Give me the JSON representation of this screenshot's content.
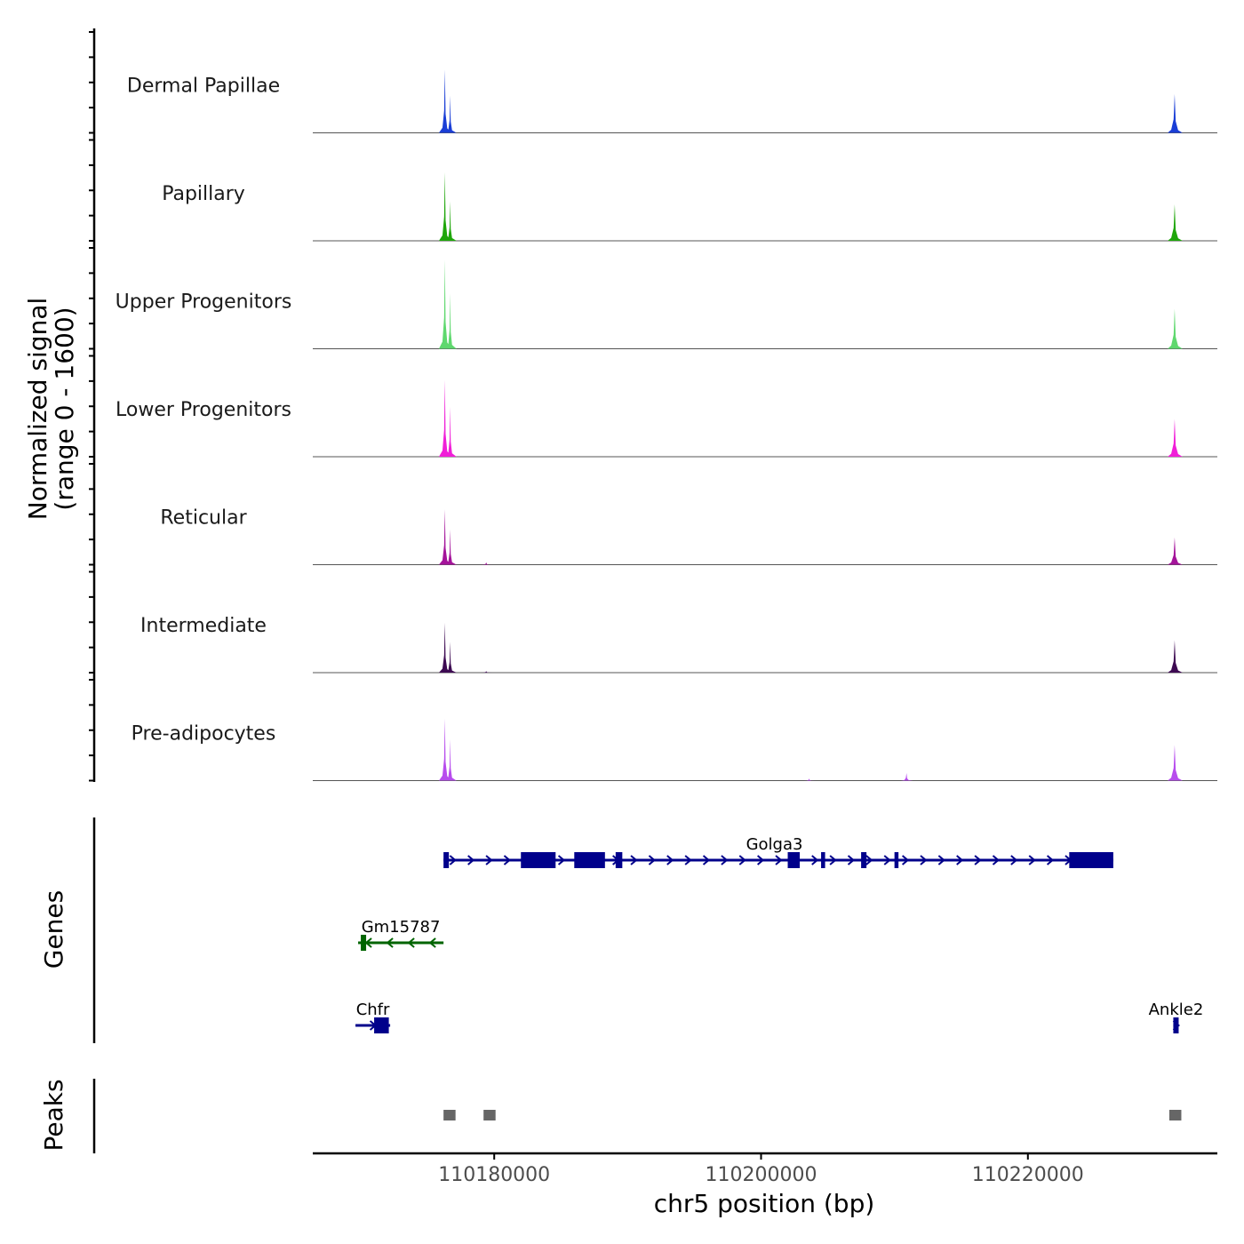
{
  "chart_data": {
    "type": "area",
    "title": "",
    "ylabel_line1": "Normalized signal",
    "ylabel_line2": "(range 0 - 1600)",
    "ylim": [
      0,
      1600
    ],
    "xlabel": "chr5 position (bp)",
    "xlim": [
      110166400,
      110234200
    ],
    "x_ticks": [
      110180000,
      110200000,
      110220000
    ],
    "x_tick_labels": [
      "110180000",
      "110200000",
      "110220000"
    ],
    "tracks": [
      {
        "name": "Dermal Papillae",
        "color": "#1a3ed6",
        "peak1": 1600,
        "peak2": 940,
        "peak3": 980,
        "minor": []
      },
      {
        "name": "Papillary",
        "color": "#1fa60a",
        "peak1": 1730,
        "peak2": 1000,
        "peak3": 920,
        "minor": []
      },
      {
        "name": "Upper Progenitors",
        "color": "#5fd86e",
        "peak1": 2250,
        "peak2": 1400,
        "peak3": 1010,
        "minor": []
      },
      {
        "name": "Lower Progenitors",
        "color": "#f01fd8",
        "peak1": 1940,
        "peak2": 1260,
        "peak3": 950,
        "minor": []
      },
      {
        "name": "Reticular",
        "color": "#a4139a",
        "peak1": 1400,
        "peak2": 890,
        "peak3": 690,
        "minor": [
          {
            "x": 110179400,
            "v": 60
          }
        ]
      },
      {
        "name": "Intermediate",
        "color": "#3d0a52",
        "peak1": 1260,
        "peak2": 780,
        "peak3": 820,
        "minor": [
          {
            "x": 110179400,
            "v": 40
          }
        ]
      },
      {
        "name": "Pre-adipocytes",
        "color": "#b74ced",
        "peak1": 1570,
        "peak2": 1040,
        "peak3": 900,
        "minor": [
          {
            "x": 110210900,
            "v": 190
          },
          {
            "x": 110203600,
            "v": 50
          }
        ]
      }
    ],
    "peak_positions": [
      110176300,
      110176700,
      110231000
    ],
    "genes_label": "Genes",
    "genes": [
      {
        "name": "Golga3",
        "strand": "+",
        "color": "#00008b",
        "start": 110176200,
        "end": 110226400,
        "row": 0,
        "exons": [
          [
            110176200,
            110176600
          ],
          [
            110182000,
            110184600
          ],
          [
            110186000,
            110188300
          ],
          [
            110189100,
            110189600
          ],
          [
            110202000,
            110202900
          ],
          [
            110204500,
            110204800
          ],
          [
            110207500,
            110207900
          ],
          [
            110210000,
            110210300
          ],
          [
            110223100,
            110226400
          ]
        ]
      },
      {
        "name": "Gm15787",
        "strand": "-",
        "color": "#006400",
        "start": 110169800,
        "end": 110176200,
        "row": 1,
        "exons": [
          [
            110170000,
            110170400
          ]
        ]
      },
      {
        "name": "Chfr",
        "strand": "+",
        "color": "#00008b",
        "start": 110169600,
        "end": 110172200,
        "row": 2,
        "exons": [
          [
            110171000,
            110172100
          ]
        ]
      },
      {
        "name": "Ankle2",
        "strand": "+",
        "color": "#00008b",
        "start": 110230900,
        "end": 110231300,
        "row": 2,
        "exons": [
          [
            110230900,
            110231300
          ]
        ]
      }
    ],
    "peaks_label": "Peaks",
    "peak_regions": [
      {
        "start": 110176200,
        "end": 110177100
      },
      {
        "start": 110179200,
        "end": 110180100
      },
      {
        "start": 110230600,
        "end": 110231500
      }
    ],
    "peak_color": "#666666"
  }
}
